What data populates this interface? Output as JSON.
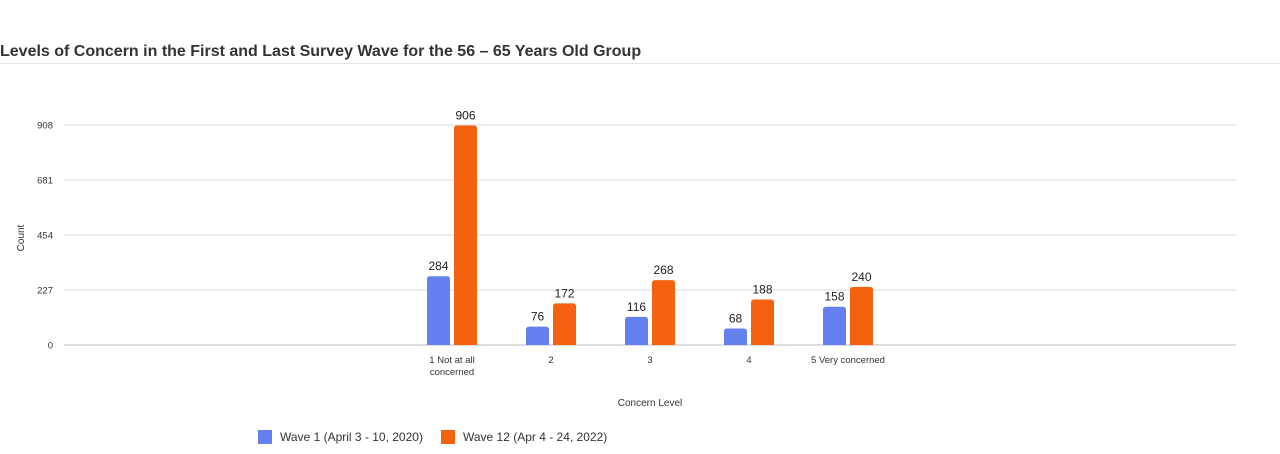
{
  "chart_data": {
    "type": "bar",
    "title": "Levels of Concern in the First and Last Survey Wave for the 56 – 65 Years Old Group",
    "xlabel": "Concern Level",
    "ylabel": "Count",
    "categories": [
      "1 Not at all concerned",
      "2",
      "3",
      "4",
      "5 Very concerned"
    ],
    "series": [
      {
        "name": "Wave 1 (April 3 - 10, 2020)",
        "values": [
          284,
          76,
          116,
          68,
          158
        ],
        "color": "#6480f0"
      },
      {
        "name": "Wave 12 (Apr 4 - 24, 2022)",
        "values": [
          906,
          172,
          268,
          188,
          240
        ],
        "color": "#f5620f"
      }
    ],
    "yticks": [
      0,
      227,
      454,
      681,
      908
    ],
    "ylim": [
      0,
      908
    ],
    "grid": true,
    "legend": "bottom-left"
  }
}
